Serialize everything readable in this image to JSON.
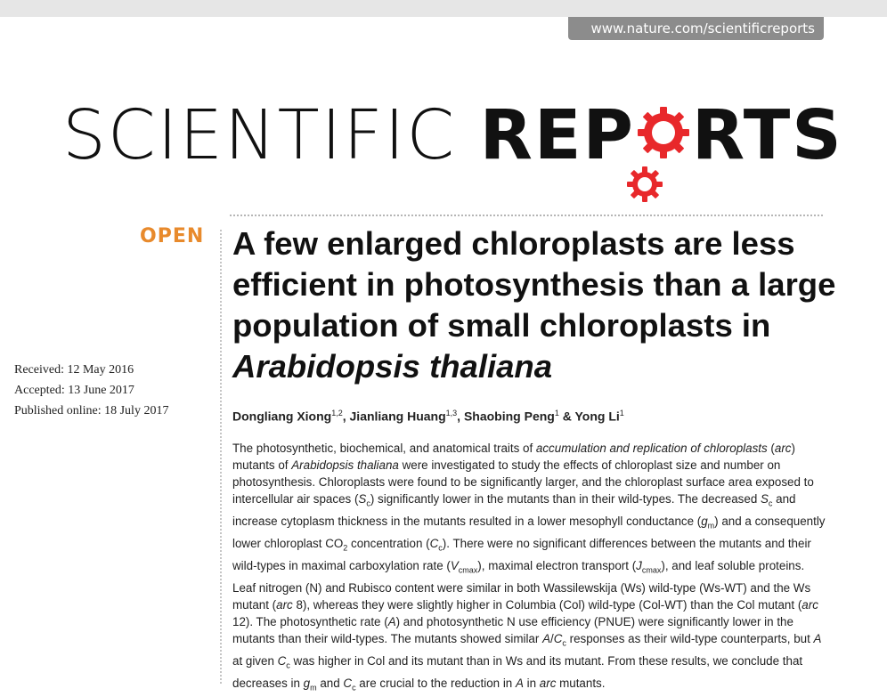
{
  "journal": {
    "url": "www.nature.com/scientificreports",
    "name_light": "SCIENTIFIC ",
    "name_bold_1": "REP",
    "name_bold_2": "RTS",
    "brand_color": "#e8282b"
  },
  "article": {
    "access_label": "OPEN",
    "access_color": "#e88a2c",
    "title_plain": "A few enlarged chloroplasts are less efficient in photosynthesis than a large population of small chloroplasts in ",
    "title_italic": "Arabidopsis thaliana",
    "dates": {
      "received": "Received: 12 May 2016",
      "accepted": "Accepted: 13 June 2017",
      "published": "Published online: 18 July 2017"
    },
    "authors": [
      {
        "name": "Dongliang Xiong",
        "aff": "1,2"
      },
      {
        "name": "Jianliang Huang",
        "aff": "1,3"
      },
      {
        "name": "Shaobing Peng",
        "aff": "1"
      },
      {
        "name": "Yong Li",
        "aff": "1"
      }
    ],
    "abstract": {
      "s01": "The photosynthetic, biochemical, and anatomical traits of ",
      "s02": "accumulation and replication of chloroplasts",
      "s03": " (",
      "s04": "arc",
      "s05": ") mutants of ",
      "s06": "Arabidopsis thaliana",
      "s07": " were investigated to study the effects of chloroplast size and number on photosynthesis. Chloroplasts were found to be significantly larger, and the chloroplast surface area exposed to intercellular air spaces (",
      "s08": "S",
      "s09": "c",
      "s10": ") significantly lower in the mutants than in their wild-types. The decreased ",
      "s11": "S",
      "s12": "c",
      "s13": " and increase cytoplasm thickness in the mutants resulted in a lower mesophyll conductance (",
      "s14": "g",
      "s15": "m",
      "s16": ") and a consequently lower chloroplast CO",
      "s17": "2",
      "s18": " concentration (",
      "s19": "C",
      "s20": "c",
      "s21": "). There were no significant differences between the mutants and their wild-types in maximal carboxylation rate (",
      "s22": "V",
      "s23": "cmax",
      "s24": "), maximal electron transport (",
      "s25": "J",
      "s26": "cmax",
      "s27": "), and leaf soluble proteins. Leaf nitrogen (N) and Rubisco content were similar in both Wassilewskija (Ws) wild-type (Ws-WT) and the Ws mutant (",
      "s28": "arc",
      "s29": " 8), whereas they were slightly higher in Columbia (Col) wild-type (Col-WT) than the Col mutant (",
      "s30": "arc",
      "s31": " 12). The photosynthetic rate (",
      "s32": "A",
      "s33": ") and photosynthetic N use efficiency (PNUE) were significantly lower in the mutants than their wild-types. The mutants showed similar ",
      "s34": "A",
      "s35": "/",
      "s36": "C",
      "s37": "c",
      "s38": " responses as their wild-type counterparts, but ",
      "s39": "A",
      "s40": " at given ",
      "s41": "C",
      "s42": "c",
      "s43": " was higher in Col and its mutant than in Ws and its mutant. From these results, we conclude that decreases in ",
      "s44": "g",
      "s45": "m",
      "s46": " and ",
      "s47": "C",
      "s48": "c",
      "s49": " are crucial to the reduction in ",
      "s50": "A",
      "s51": " in ",
      "s52": "arc",
      "s53": " mutants."
    }
  }
}
